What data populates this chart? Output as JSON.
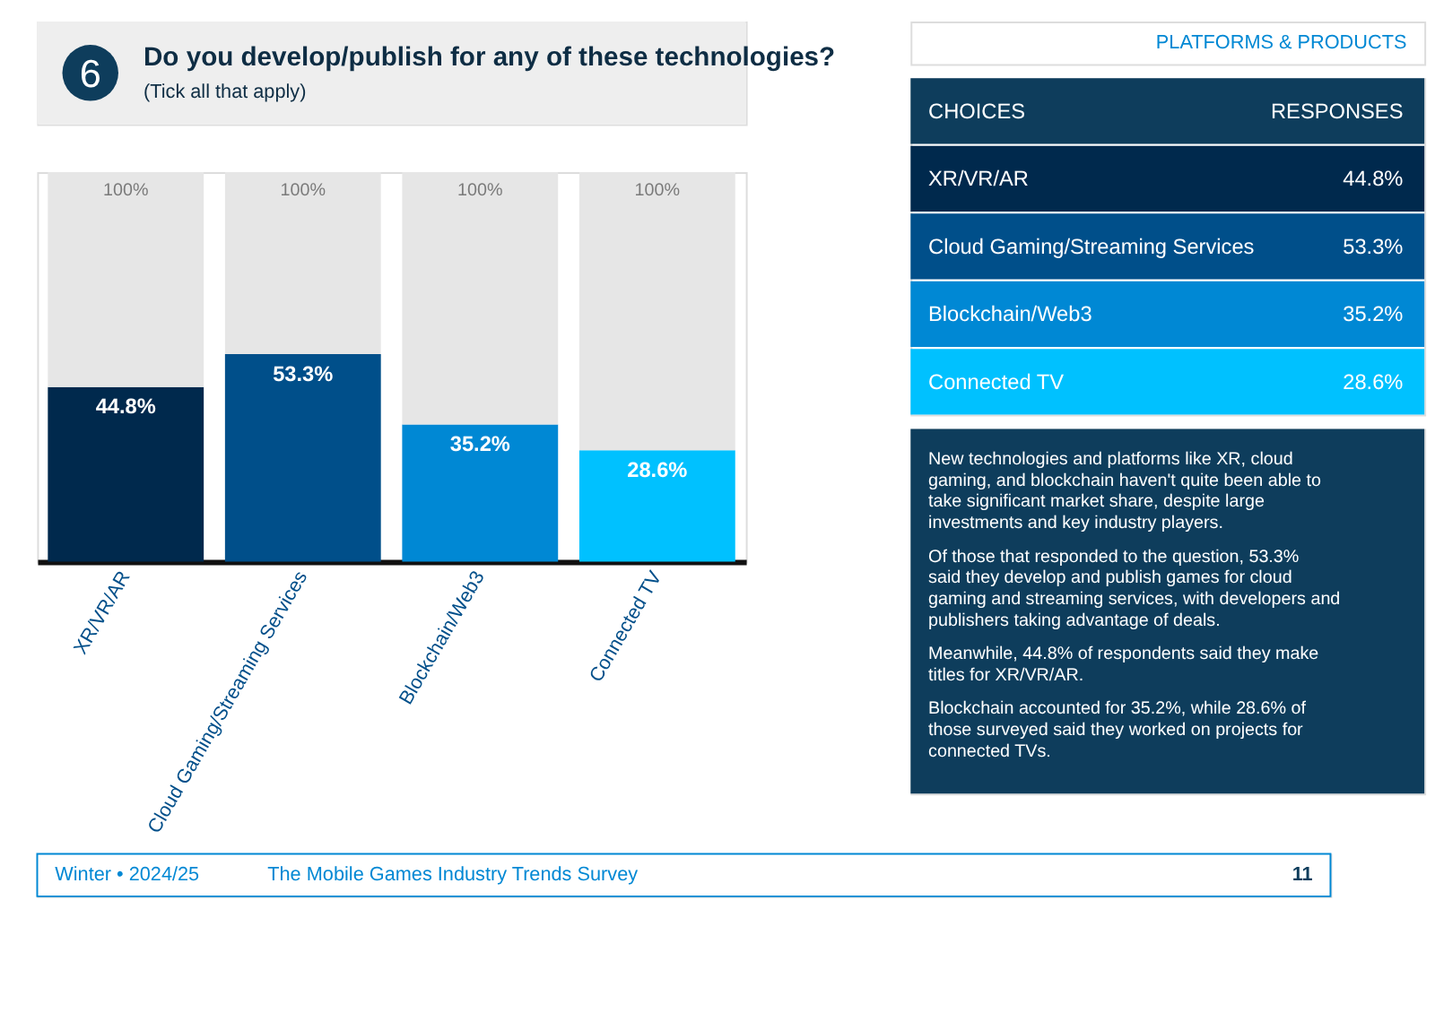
{
  "chart_data": {
    "type": "bar",
    "title": "Do you develop/publish for any of these technologies?",
    "subtitle": "(Tick all that apply)",
    "categories": [
      "XR/VR/AR",
      "Cloud Gaming/Streaming Services",
      "Blockchain/Web3",
      "Connected TV"
    ],
    "stacked": true,
    "series": [
      {
        "colors": [
          "#00294d",
          "#004f8a",
          "#0088d4",
          "#00c1ff"
        ],
        "values": [
          44.8,
          53.3,
          35.2,
          28.6
        ],
        "value_labels": [
          "44.8%",
          "53.3%",
          "35.2%",
          "28.6%"
        ]
      },
      {
        "color": "#e6e6e6",
        "values": [
          55.2,
          46.7,
          64.8,
          71.4
        ]
      }
    ],
    "totals": [
      "100%",
      "100%",
      "100%",
      "100%"
    ],
    "ylim": [
      0,
      100
    ],
    "tick_labels": "x",
    "legend": false,
    "grid": false,
    "annotations": [
      "6",
      "PLATFORMS & PRODUCTS",
      "CHOICES",
      "RESPONSES",
      "New technologies and platforms like XR, cloud gaming, and blockchain haven't quite been able to take significant market share, despite large investments and key industry players.",
      "Of those that responded to the question, 53.3% said they develop and publish games for cloud gaming and streaming services, with developers and publishers taking advantage of deals.",
      "Meanwhile, 44.8% of respondents said they make titles for XR/VR/AR.",
      "Blockchain accounted for 35.2%, while 28.6% of those surveyed said they worked on projects for connected TVs.",
      "Winter • 2024/25",
      "The Mobile Games Industry Trends Survey",
      "11"
    ]
  }
}
